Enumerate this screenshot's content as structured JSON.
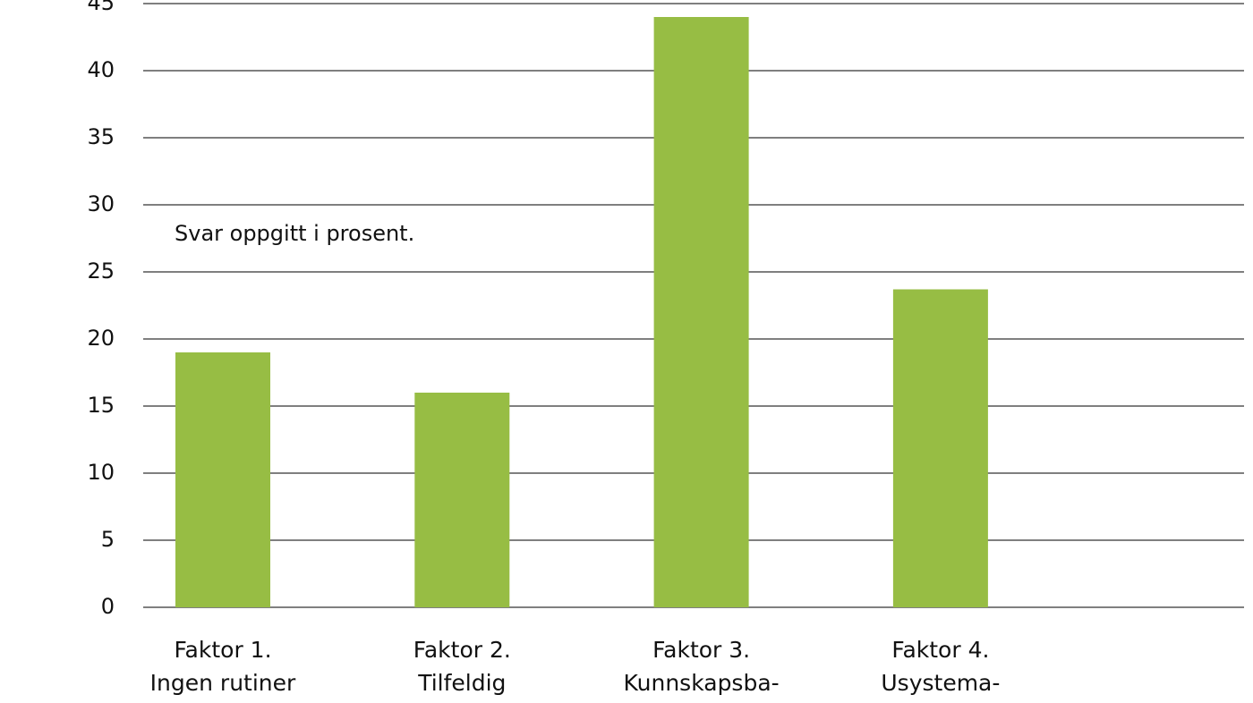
{
  "chart_data": {
    "type": "bar",
    "annotation": "Svar oppgitt i prosent.",
    "categories": [
      [
        "Faktor 1.",
        "Ingen rutiner"
      ],
      [
        "Faktor 2.",
        "Tilfeldig"
      ],
      [
        "Faktor 3.",
        "Kunnskapsba-"
      ],
      [
        "Faktor 4.",
        "Usystema-"
      ]
    ],
    "values": [
      19,
      16,
      44,
      23.7
    ],
    "color": "#97bd44",
    "ylim": [
      0,
      45
    ],
    "yticks": [
      0,
      5,
      10,
      15,
      20,
      25,
      30,
      35,
      40,
      45
    ],
    "grid": true
  }
}
